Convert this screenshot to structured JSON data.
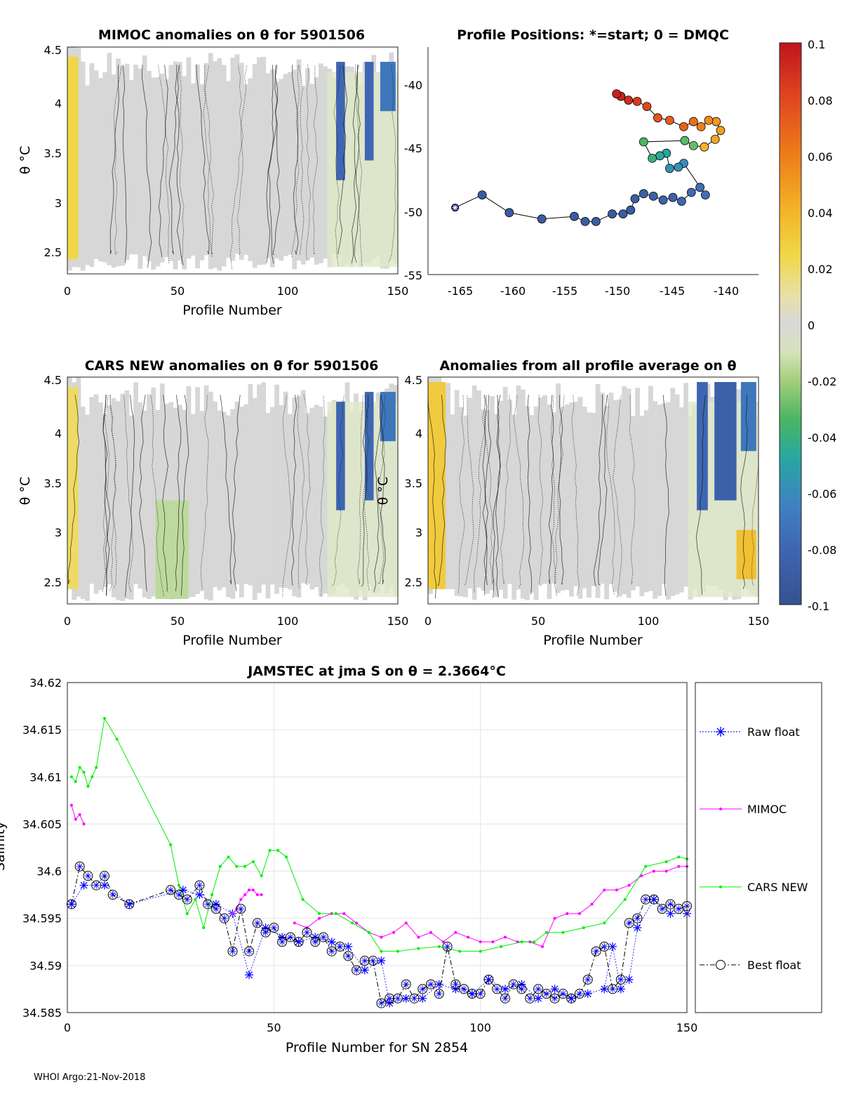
{
  "panels": {
    "mimoc": {
      "title": "MIMOC anomalies on θ  for 5901506",
      "ylabel": "θ °C",
      "xlabel": "Profile Number",
      "xticks": [
        "0",
        "50",
        "100",
        "150"
      ],
      "yticks": [
        "2.5",
        "3",
        "3.5",
        "4",
        "4.5"
      ]
    },
    "positions": {
      "title": "Profile Positions: *=start; 0 = DMQC",
      "xticks": [
        "-165",
        "-160",
        "-155",
        "-150",
        "-145",
        "-140"
      ],
      "yticks": [
        "-40",
        "-45",
        "-50",
        "-55"
      ]
    },
    "cars": {
      "title": "CARS NEW anomalies on θ for 5901506",
      "ylabel": "θ °C",
      "xlabel": "Profile Number",
      "xticks": [
        "0",
        "50",
        "100",
        "150"
      ],
      "yticks": [
        "2.5",
        "3",
        "3.5",
        "4",
        "4.5"
      ]
    },
    "allavg": {
      "title": "Anomalies from all profile average on θ",
      "ylabel": "θ °C",
      "xlabel": "Profile Number",
      "xticks": [
        "0",
        "50",
        "100",
        "150"
      ],
      "yticks": [
        "2.5",
        "3",
        "3.5",
        "4",
        "4.5"
      ]
    },
    "colorbar": {
      "ticks": [
        "0.1",
        "0.08",
        "0.06",
        "0.04",
        "0.02",
        "0",
        "-0.02",
        "-0.04",
        "-0.06",
        "-0.08",
        "-0.1"
      ]
    }
  },
  "footer": "WHOI Argo:21-Nov-2018",
  "colors": {
    "raw_float": "#0000ff",
    "mimoc": "#ff00ff",
    "cars_new": "#00ee00",
    "best_float": "#000000"
  },
  "chart_data": [
    {
      "type": "heatmap",
      "title": "MIMOC anomalies on θ  for 5901506",
      "xlabel": "Profile Number",
      "ylabel": "θ °C",
      "xlim": [
        0,
        150
      ],
      "ylim": [
        2.25,
        4.55
      ],
      "clim": [
        -0.1,
        0.1
      ],
      "features": [
        {
          "x": [
            0,
            5
          ],
          "theta": [
            2.4,
            4.45
          ],
          "anomaly": 0.025
        },
        {
          "x": [
            122,
            126
          ],
          "theta": [
            3.2,
            4.4
          ],
          "anomaly": -0.08
        },
        {
          "x": [
            135,
            139
          ],
          "theta": [
            3.4,
            4.4
          ],
          "anomaly": -0.08
        },
        {
          "x": [
            142,
            149
          ],
          "theta": [
            3.9,
            4.4
          ],
          "anomaly": -0.07
        }
      ]
    },
    {
      "type": "scatter",
      "title": "Profile Positions: *=start; 0 = DMQC",
      "xlim": [
        -167.5,
        -137
      ],
      "ylim": [
        -55,
        -37
      ],
      "start": {
        "lon": -165,
        "lat": -49.7
      },
      "lon": [
        -162.5,
        -160,
        -157,
        -154,
        -153,
        -152,
        -150.5,
        -149.5,
        -148.8,
        -148.4,
        -147.6,
        -146.7,
        -145.8,
        -144.9,
        -144.1,
        -143.2,
        -142.4,
        -141.9,
        -143.9,
        -144.4,
        -145.2,
        -145.5,
        -146.1,
        -146.8,
        -147.6,
        -143.8,
        -143.0,
        -142.0,
        -141.0,
        -140.5,
        -140.9,
        -141.6,
        -142.3,
        -143.0,
        -143.9,
        -145.2,
        -146.3,
        -147.3,
        -148.2,
        -149.0,
        -149.7,
        -150.1
      ],
      "lat": [
        -48.7,
        -50.1,
        -50.6,
        -50.4,
        -50.8,
        -50.8,
        -50.2,
        -50.2,
        -49.9,
        -49.0,
        -48.6,
        -48.8,
        -49.1,
        -48.9,
        -49.2,
        -48.5,
        -48.1,
        -48.7,
        -46.2,
        -46.5,
        -46.6,
        -45.4,
        -45.6,
        -45.8,
        -44.5,
        -44.4,
        -44.8,
        -44.9,
        -44.3,
        -43.6,
        -42.9,
        -42.8,
        -43.3,
        -42.9,
        -43.3,
        -42.8,
        -42.6,
        -41.7,
        -41.3,
        -41.2,
        -40.9,
        -40.7
      ],
      "color_value": [
        -0.09,
        -0.09,
        -0.09,
        -0.09,
        -0.09,
        -0.09,
        -0.09,
        -0.09,
        -0.09,
        -0.088,
        -0.085,
        -0.085,
        -0.083,
        -0.083,
        -0.08,
        -0.078,
        -0.076,
        -0.074,
        -0.06,
        -0.058,
        -0.056,
        -0.048,
        -0.046,
        -0.04,
        -0.034,
        -0.032,
        -0.03,
        0.04,
        0.045,
        0.048,
        0.05,
        0.055,
        0.06,
        0.065,
        0.07,
        0.072,
        0.075,
        0.08,
        0.085,
        0.09,
        0.093,
        0.095
      ]
    },
    {
      "type": "heatmap",
      "title": "CARS NEW anomalies on θ for 5901506",
      "xlabel": "Profile Number",
      "ylabel": "θ °C",
      "xlim": [
        0,
        150
      ],
      "ylim": [
        2.25,
        4.55
      ],
      "clim": [
        -0.1,
        0.1
      ],
      "features": [
        {
          "x": [
            0,
            5
          ],
          "theta": [
            2.4,
            4.45
          ],
          "anomaly": 0.02
        },
        {
          "x": [
            40,
            55
          ],
          "theta": [
            2.3,
            3.3
          ],
          "anomaly": -0.015
        },
        {
          "x": [
            122,
            126
          ],
          "theta": [
            3.2,
            4.3
          ],
          "anomaly": -0.08
        },
        {
          "x": [
            135,
            139
          ],
          "theta": [
            3.3,
            4.4
          ],
          "anomaly": -0.08
        },
        {
          "x": [
            142,
            149
          ],
          "theta": [
            3.9,
            4.4
          ],
          "anomaly": -0.07
        }
      ]
    },
    {
      "type": "heatmap",
      "title": "Anomalies from all profile average on θ",
      "xlabel": "Profile Number",
      "ylabel": "θ °C",
      "xlim": [
        0,
        150
      ],
      "ylim": [
        2.25,
        4.55
      ],
      "clim": [
        -0.1,
        0.1
      ],
      "features": [
        {
          "x": [
            0,
            8
          ],
          "theta": [
            2.4,
            4.5
          ],
          "anomaly": 0.03
        },
        {
          "x": [
            122,
            127
          ],
          "theta": [
            3.2,
            4.5
          ],
          "anomaly": -0.08
        },
        {
          "x": [
            130,
            140
          ],
          "theta": [
            3.3,
            4.5
          ],
          "anomaly": -0.085
        },
        {
          "x": [
            142,
            149
          ],
          "theta": [
            3.8,
            4.5
          ],
          "anomaly": -0.07
        },
        {
          "x": [
            140,
            149
          ],
          "theta": [
            2.5,
            3.0
          ],
          "anomaly": 0.035
        }
      ]
    },
    {
      "type": "line",
      "title_main": "JAMSTEC at jma S on θ = 2.3664",
      "title_unit": "°C",
      "xlabel": "Profile Number for SN 2854",
      "ylabel": "Salinity",
      "xlim": [
        0,
        150
      ],
      "ylim": [
        34.585,
        34.62
      ],
      "xticks": [
        "0",
        "50",
        "100",
        "150"
      ],
      "yticks": [
        "34.585",
        "34.59",
        "34.595",
        "34.6",
        "34.605",
        "34.61",
        "34.615",
        "34.62"
      ],
      "legend": [
        "Raw float",
        "MIMOC",
        "CARS NEW",
        "Best float"
      ],
      "series": [
        {
          "name": "Raw float",
          "x": [
            1,
            4,
            9,
            15,
            28,
            32,
            36,
            40,
            44,
            48,
            52,
            56,
            60,
            64,
            68,
            72,
            76,
            78,
            82,
            86,
            90,
            94,
            98,
            102,
            106,
            110,
            114,
            118,
            122,
            126,
            130,
            132,
            134,
            136,
            138,
            142,
            146,
            150
          ],
          "y": [
            34.5965,
            34.5985,
            34.5985,
            34.5965,
            34.598,
            34.5975,
            34.5965,
            34.5955,
            34.589,
            34.594,
            34.593,
            34.5925,
            34.593,
            34.5925,
            34.592,
            34.5895,
            34.5905,
            34.586,
            34.5865,
            34.5865,
            34.588,
            34.5875,
            34.587,
            34.5885,
            34.5875,
            34.588,
            34.5865,
            34.5875,
            34.5865,
            34.587,
            34.5875,
            34.592,
            34.5875,
            34.5885,
            34.594,
            34.597,
            34.5955,
            34.5955
          ]
        },
        {
          "name": "MIMOC",
          "x": [
            1,
            2,
            3,
            4,
            40,
            41,
            42,
            43,
            44,
            45,
            46,
            47,
            55,
            58,
            61,
            64,
            67,
            70,
            73,
            76,
            79,
            82,
            85,
            88,
            91,
            94,
            97,
            100,
            103,
            106,
            109,
            112,
            115,
            118,
            121,
            124,
            127,
            130,
            133,
            136,
            139,
            142,
            145,
            148,
            150
          ],
          "y": [
            34.607,
            34.6055,
            34.606,
            34.605,
            34.5955,
            34.596,
            34.597,
            34.5975,
            34.598,
            34.598,
            34.5975,
            34.5975,
            34.5945,
            34.594,
            34.595,
            34.5955,
            34.5955,
            34.5945,
            34.5935,
            34.593,
            34.5935,
            34.5945,
            34.593,
            34.5935,
            34.5925,
            34.5935,
            34.593,
            34.5925,
            34.5925,
            34.593,
            34.5925,
            34.5925,
            34.592,
            34.595,
            34.5955,
            34.5955,
            34.5965,
            34.598,
            34.598,
            34.5985,
            34.5995,
            34.6,
            34.6,
            34.6005,
            34.6005
          ]
        },
        {
          "name": "CARS NEW",
          "x": [
            1,
            2,
            3,
            4,
            5,
            6,
            7,
            9,
            12,
            25,
            27,
            29,
            31,
            33,
            35,
            37,
            39,
            41,
            43,
            45,
            47,
            49,
            51,
            53,
            57,
            61,
            65,
            69,
            73,
            76,
            80,
            85,
            90,
            95,
            100,
            105,
            110,
            113,
            116,
            120,
            125,
            130,
            135,
            140,
            145,
            148,
            150
          ],
          "y": [
            34.61,
            34.6095,
            34.611,
            34.6105,
            34.609,
            34.61,
            34.611,
            34.6162,
            34.614,
            34.6028,
            34.5985,
            34.5955,
            34.597,
            34.594,
            34.5975,
            34.6005,
            34.6015,
            34.6005,
            34.6005,
            34.601,
            34.5995,
            34.6022,
            34.6022,
            34.6015,
            34.597,
            34.5955,
            34.5955,
            34.5945,
            34.5935,
            34.5915,
            34.5915,
            34.5918,
            34.592,
            34.5915,
            34.5915,
            34.592,
            34.5925,
            34.5925,
            34.5935,
            34.5935,
            34.594,
            34.5945,
            34.597,
            34.6005,
            34.601,
            34.6015,
            34.6013
          ]
        },
        {
          "name": "Best float",
          "x": [
            1,
            3,
            5,
            7,
            9,
            11,
            15,
            25,
            27,
            29,
            32,
            34,
            36,
            38,
            40,
            42,
            44,
            46,
            48,
            50,
            52,
            54,
            56,
            58,
            60,
            62,
            64,
            66,
            68,
            70,
            72,
            74,
            76,
            78,
            80,
            82,
            84,
            86,
            88,
            90,
            92,
            94,
            96,
            98,
            100,
            102,
            104,
            106,
            108,
            110,
            112,
            114,
            116,
            118,
            120,
            122,
            124,
            126,
            128,
            130,
            132,
            134,
            136,
            138,
            140,
            142,
            144,
            146,
            148,
            150
          ],
          "y": [
            34.5965,
            34.6005,
            34.5995,
            34.5985,
            34.5995,
            34.5975,
            34.5965,
            34.598,
            34.5975,
            34.597,
            34.5985,
            34.5965,
            34.596,
            34.595,
            34.5915,
            34.596,
            34.5915,
            34.5945,
            34.5935,
            34.594,
            34.5925,
            34.593,
            34.5925,
            34.5935,
            34.5925,
            34.593,
            34.5915,
            34.592,
            34.591,
            34.5895,
            34.5905,
            34.5905,
            34.586,
            34.5865,
            34.5865,
            34.588,
            34.5865,
            34.5875,
            34.588,
            34.587,
            34.592,
            34.588,
            34.5875,
            34.587,
            34.587,
            34.5885,
            34.5875,
            34.5865,
            34.588,
            34.5875,
            34.5865,
            34.5875,
            34.587,
            34.5865,
            34.587,
            34.5865,
            34.587,
            34.5885,
            34.5915,
            34.592,
            34.5875,
            34.5885,
            34.5945,
            34.595,
            34.597,
            34.597,
            34.596,
            34.5965,
            34.596,
            34.5963
          ]
        }
      ]
    }
  ]
}
